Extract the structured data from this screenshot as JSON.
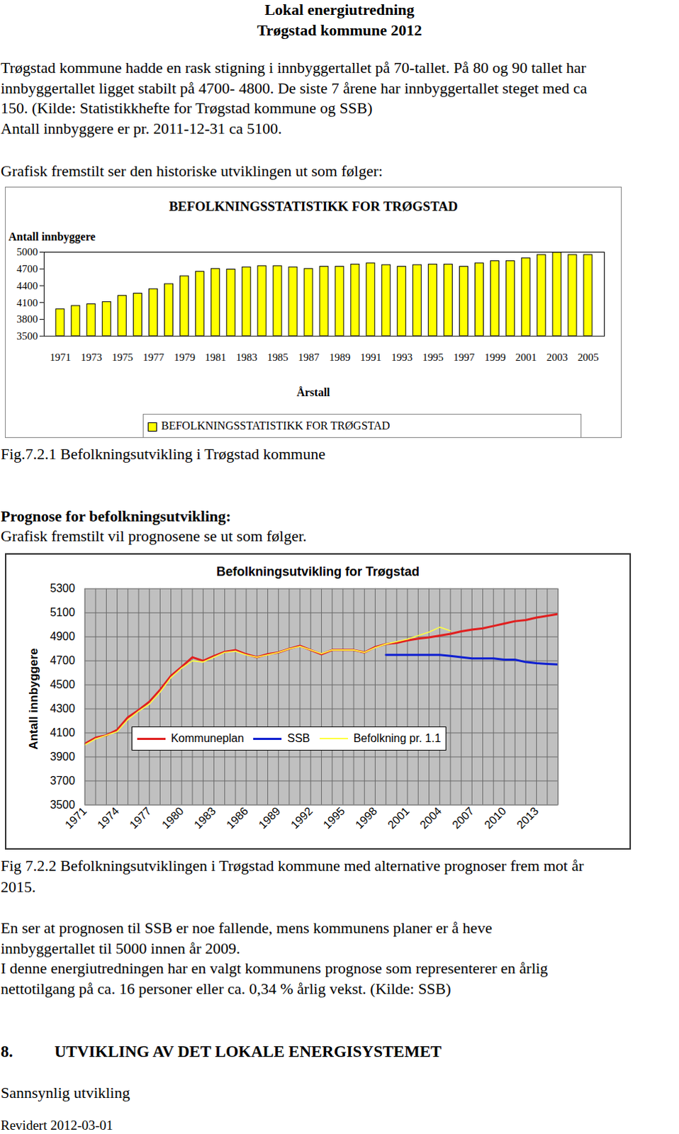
{
  "document": {
    "header": [
      "Lokal energiutredning",
      "Trøgstad kommune 2012"
    ],
    "intro": [
      "Trøgstad kommune hadde en rask stigning i innbyggertallet på 70-tallet. På 80 og 90 tallet har",
      "innbyggertallet ligget stabilt på 4700- 4800. De siste 7 årene har innbyggertallet steget med ca",
      "150. (Kilde: Statistikkhefte for Trøgstad kommune og SSB)",
      "Antall innbyggere er pr. 2011-12-31 ca 5100."
    ],
    "lead_1": "Grafisk fremstilt ser den historiske utviklingen ut som følger:",
    "caption_1": "Fig.7.2.1 Befolkningsutvikling i Trøgstad kommune",
    "subheading": "Prognose for befolkningsutvikling:",
    "lead_2": "Grafisk fremstilt vil prognosene se ut som følger.",
    "caption_2": [
      "Fig 7.2.2 Befolkningsutviklingen i Trøgstad kommune med alternative prognoser frem mot år",
      "2015."
    ],
    "discussion": [
      "En ser at prognosen til SSB er noe fallende, mens kommunens planer er å heve",
      "innbyggertallet til 5000 innen år 2009.",
      "I denne energiutredningen har en valgt kommunens prognose som representerer en årlig",
      "nettotilgang på ca. 16 personer eller ca. 0,34 % årlig vekst. (Kilde: SSB)"
    ],
    "section": {
      "number": "8.",
      "title": "UTVIKLING AV DET LOKALE ENERGISYSTEMET"
    },
    "section_subtitle": "Sannsynlig utvikling",
    "footer": "Revidert 2012-03-01"
  },
  "chart_data": [
    {
      "type": "bar",
      "title": "BEFOLKNINGSSTATISTIKK FOR TRØGSTAD",
      "y_label": "Antall innbyggere",
      "x_label": "Årstall",
      "categories": [
        "1971",
        null,
        "1973",
        null,
        "1975",
        null,
        "1977",
        null,
        "1979",
        null,
        "1981",
        null,
        "1983",
        null,
        "1985",
        null,
        "1987",
        null,
        "1989",
        null,
        "1991",
        null,
        "1993",
        null,
        "1995",
        null,
        "1997",
        null,
        "1999",
        null,
        "2001",
        null,
        "2003",
        null,
        "2005"
      ],
      "series": [
        {
          "name": "BEFOLKNINGSSTATISTIKK FOR TRØGSTAD",
          "color": "#ffff00",
          "values": [
            3980,
            4040,
            4070,
            4110,
            4220,
            4260,
            4340,
            4430,
            4570,
            4650,
            4700,
            4690,
            4730,
            4750,
            4750,
            4730,
            4700,
            4740,
            4740,
            4780,
            4800,
            4770,
            4740,
            4770,
            4780,
            4780,
            4740,
            4800,
            4840,
            4840,
            4890,
            4950,
            4990,
            4950,
            4950
          ]
        }
      ],
      "ylim": [
        3500,
        5000
      ],
      "yticks": [
        3500,
        3800,
        4100,
        4400,
        4700,
        5000
      ],
      "grid": false,
      "legend": "bottom"
    },
    {
      "type": "line",
      "title": "Befolkningsutvikling for Trøgstad",
      "y_label": "Antall innbyggere",
      "x": [
        1971,
        1972,
        1973,
        1974,
        1975,
        1976,
        1977,
        1978,
        1979,
        1980,
        1981,
        1982,
        1983,
        1984,
        1985,
        1986,
        1987,
        1988,
        1989,
        1990,
        1991,
        1992,
        1993,
        1994,
        1995,
        1996,
        1997,
        1998,
        1999,
        2000,
        2001,
        2002,
        2003,
        2004,
        2005,
        2006,
        2007,
        2008,
        2009,
        2010,
        2011,
        2012,
        2013,
        2014,
        2015
      ],
      "xlim": [
        1971,
        2015
      ],
      "xticks": [
        1971,
        1974,
        1977,
        1980,
        1983,
        1986,
        1989,
        1992,
        1995,
        1998,
        2001,
        2004,
        2007,
        2010,
        2013
      ],
      "ylim": [
        3500,
        5300
      ],
      "yticks": [
        3500,
        3700,
        3900,
        4100,
        4300,
        4500,
        4700,
        4900,
        5100,
        5300
      ],
      "grid": true,
      "legend": "bottom",
      "series": [
        {
          "name": "Kommuneplan",
          "color": "#e02020",
          "values": [
            4010,
            4060,
            4080,
            4125,
            4230,
            4290,
            4360,
            4460,
            4575,
            4650,
            4730,
            4700,
            4740,
            4775,
            4790,
            4755,
            4730,
            4755,
            4770,
            4800,
            4825,
            4790,
            4755,
            4790,
            4790,
            4790,
            4770,
            4815,
            4840,
            4850,
            4870,
            4885,
            4895,
            4910,
            4925,
            4945,
            4960,
            4970,
            4990,
            5010,
            5030,
            5040,
            5060,
            5075,
            5090
          ]
        },
        {
          "name": "SSB",
          "color": "#1020d0",
          "values": [
            null,
            null,
            null,
            null,
            null,
            null,
            null,
            null,
            null,
            null,
            null,
            null,
            null,
            null,
            null,
            null,
            null,
            null,
            null,
            null,
            null,
            null,
            null,
            null,
            null,
            null,
            null,
            null,
            4750,
            4750,
            4750,
            4750,
            4750,
            4750,
            4740,
            4730,
            4720,
            4720,
            4720,
            4710,
            4710,
            4690,
            4680,
            4675,
            4670
          ]
        },
        {
          "name": "Befolkning pr. 1.1",
          "color": "#ffff40",
          "values": [
            4000,
            4050,
            4080,
            4110,
            4210,
            4280,
            4340,
            4440,
            4560,
            4640,
            4700,
            4690,
            4730,
            4770,
            4780,
            4750,
            4730,
            4750,
            4770,
            4800,
            4820,
            4790,
            4760,
            4790,
            4790,
            4790,
            4770,
            4810,
            4840,
            4860,
            4880,
            4910,
            4940,
            4980,
            4950,
            null,
            null,
            null,
            null,
            null,
            null,
            null,
            null,
            null,
            null
          ]
        }
      ]
    }
  ]
}
